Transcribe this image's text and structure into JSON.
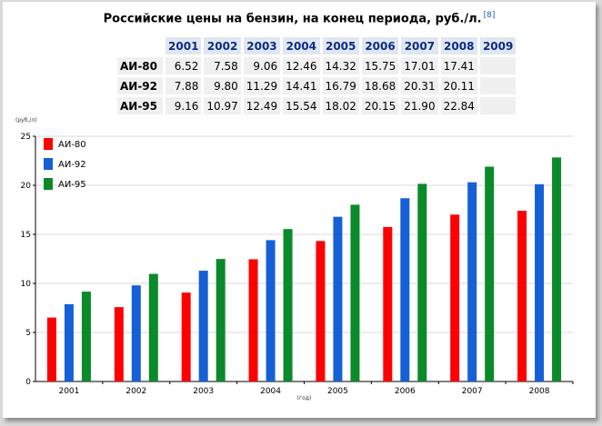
{
  "title": "Российские цены на бензин, на конец периода, руб./л.",
  "title_ref": "[8]",
  "table": {
    "years": [
      "2001",
      "2002",
      "2003",
      "2004",
      "2005",
      "2006",
      "2007",
      "2008",
      "2009"
    ],
    "rows": [
      {
        "label": "АИ-80",
        "values": [
          "6.52",
          "7.58",
          "9.06",
          "12.46",
          "14.32",
          "15.75",
          "17.01",
          "17.41"
        ]
      },
      {
        "label": "АИ-92",
        "values": [
          "7.88",
          "9.80",
          "11.29",
          "14.41",
          "16.79",
          "18.68",
          "20.31",
          "20.11"
        ]
      },
      {
        "label": "АИ-95",
        "values": [
          "9.16",
          "10.97",
          "12.49",
          "15.54",
          "18.02",
          "20.15",
          "21.90",
          "22.84"
        ]
      }
    ]
  },
  "chart_data": {
    "type": "bar",
    "categories": [
      "2001",
      "2002",
      "2003",
      "2004",
      "2005",
      "2006",
      "2007",
      "2008"
    ],
    "series": [
      {
        "name": "АИ-80",
        "color": "#ff0000",
        "values": [
          6.52,
          7.58,
          9.06,
          12.46,
          14.32,
          15.75,
          17.01,
          17.41
        ]
      },
      {
        "name": "АИ-92",
        "color": "#1560d6",
        "values": [
          7.88,
          9.8,
          11.29,
          14.41,
          16.79,
          18.68,
          20.31,
          20.11
        ]
      },
      {
        "name": "АИ-95",
        "color": "#0a8a2a",
        "values": [
          9.16,
          10.97,
          12.49,
          15.54,
          18.02,
          20.15,
          21.9,
          22.84
        ]
      }
    ],
    "ylabel": "(руб./л)",
    "xlabel": "(год)",
    "ylim": [
      0,
      25
    ],
    "yticks": [
      "0",
      "5",
      "10",
      "15",
      "20",
      "25"
    ],
    "grid": true,
    "legend": "top-left"
  }
}
